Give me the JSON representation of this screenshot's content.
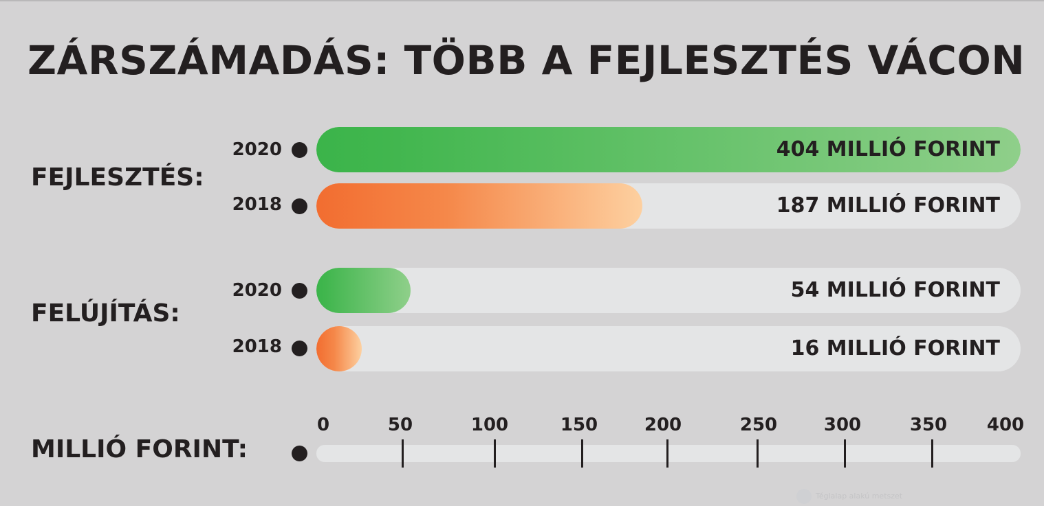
{
  "chart_data": {
    "type": "bar",
    "title": "ZÁRSZÁMADÁS: TÖBB A FEJLESZTÉS VÁCON",
    "xlabel": "MILLIÓ FORINT:",
    "xlim": [
      0,
      400
    ],
    "orientation": "horizontal",
    "groups": [
      {
        "label": "FEJLESZTÉS:",
        "bars": [
          {
            "year": "2020",
            "value": 404,
            "value_label": "404 MILLIÓ FORINT",
            "color": "green"
          },
          {
            "year": "2018",
            "value": 187,
            "value_label": "187 MILLIÓ FORINT",
            "color": "orange"
          }
        ]
      },
      {
        "label": "FELÚJÍTÁS:",
        "bars": [
          {
            "year": "2020",
            "value": 54,
            "value_label": "54 MILLIÓ FORINT",
            "color": "green"
          },
          {
            "year": "2018",
            "value": 16,
            "value_label": "16 MILLIÓ FORINT",
            "color": "orange"
          }
        ]
      }
    ],
    "ticks": [
      "0",
      "50",
      "100",
      "150",
      "200",
      "250",
      "300",
      "350",
      "400"
    ],
    "colors": {
      "green": "#3bb44a",
      "orange": "#f26d30",
      "track": "#e4e5e6",
      "background": "#d4d3d4"
    }
  },
  "watermark": "Téglalap alakú metszet"
}
